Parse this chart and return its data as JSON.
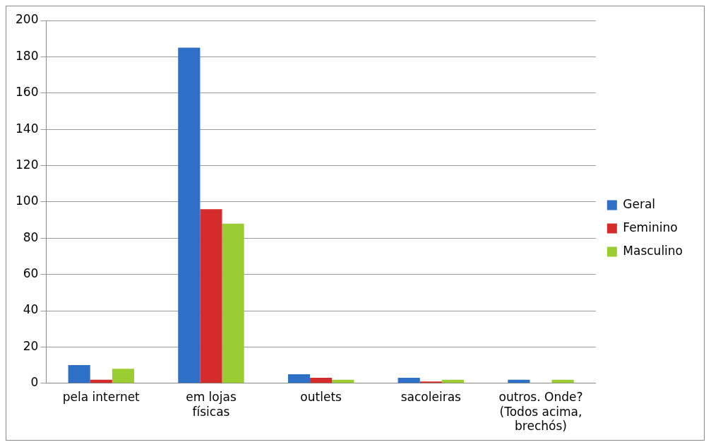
{
  "chart_data": {
    "type": "bar",
    "categories": [
      "pela internet",
      "em lojas físicas",
      "outlets",
      "sacoleiras",
      "outros. Onde? (Todos acima, brechós)"
    ],
    "series": [
      {
        "name": "Geral",
        "color": "#2e6fc8",
        "values": [
          10,
          185,
          5,
          3,
          2
        ]
      },
      {
        "name": "Feminino",
        "color": "#d62b2b",
        "values": [
          2,
          96,
          3,
          1,
          0
        ]
      },
      {
        "name": "Masculino",
        "color": "#9acd32",
        "values": [
          8,
          88,
          2,
          2,
          2
        ]
      }
    ],
    "ylim": [
      0,
      200
    ],
    "yticks": [
      0,
      20,
      40,
      60,
      80,
      100,
      120,
      140,
      160,
      180,
      200
    ],
    "grid": "y",
    "legend": "right"
  }
}
